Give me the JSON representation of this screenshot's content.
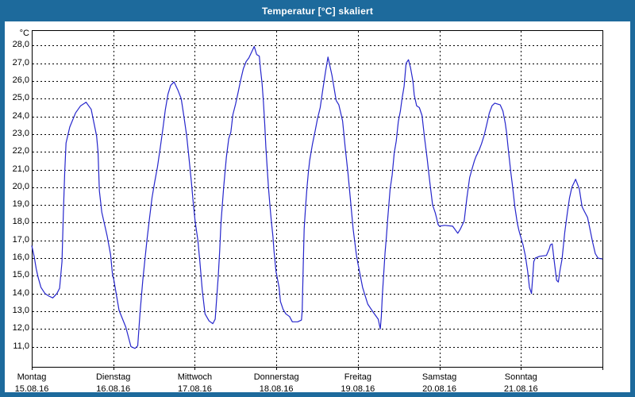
{
  "window": {
    "title": "Temperatur [°C] skaliert"
  },
  "colors": {
    "title_bar": "#1d6a9c",
    "window_border": "#1d6a9c",
    "plot_border": "#000000",
    "grid": "#000000",
    "text": "#000000",
    "background": "#ffffff",
    "line": "#2626cc"
  },
  "chart_data": {
    "type": "line",
    "title": "Temperatur [°C] skaliert",
    "ylabel": "°C",
    "unit_label": "°C",
    "grid": "dashed",
    "legend_position": "none",
    "x_axis": {
      "hours_range": [
        0,
        168
      ],
      "tick_every_hours": 24,
      "days": [
        {
          "name": "Montag",
          "date": "15.08.16"
        },
        {
          "name": "Dienstag",
          "date": "16.08.16"
        },
        {
          "name": "Mittwoch",
          "date": "17.08.16"
        },
        {
          "name": "Donnerstag",
          "date": "18.08.16"
        },
        {
          "name": "Freitag",
          "date": "19.08.16"
        },
        {
          "name": "Samstag",
          "date": "20.08.16"
        },
        {
          "name": "Sonntag",
          "date": "21.08.16"
        }
      ]
    },
    "y_axis": {
      "range": [
        9.86,
        28.87
      ],
      "ticks": [
        {
          "value": 28,
          "label": "28,0"
        },
        {
          "value": 27,
          "label": "27,0"
        },
        {
          "value": 26,
          "label": "26,0"
        },
        {
          "value": 25,
          "label": "25,0"
        },
        {
          "value": 24,
          "label": "24,0"
        },
        {
          "value": 23,
          "label": "23,0"
        },
        {
          "value": 22,
          "label": "22,0"
        },
        {
          "value": 21,
          "label": "21,0"
        },
        {
          "value": 20,
          "label": "20,0"
        },
        {
          "value": 19,
          "label": "19,0"
        },
        {
          "value": 18,
          "label": "18,0"
        },
        {
          "value": 17,
          "label": "17,0"
        },
        {
          "value": 16,
          "label": "16,0"
        },
        {
          "value": 15,
          "label": "15,0"
        },
        {
          "value": 14,
          "label": "14,0"
        },
        {
          "value": 13,
          "label": "13,0"
        },
        {
          "value": 12,
          "label": "12,0"
        },
        {
          "value": 11,
          "label": "11,0"
        }
      ]
    },
    "series": [
      {
        "name": "Temperatur [°C]",
        "color": "#2626cc",
        "points_hours_temp": [
          [
            0,
            16.7
          ],
          [
            0.7,
            16.1
          ],
          [
            1.3,
            15.4
          ],
          [
            1.9,
            14.9
          ],
          [
            2.7,
            14.35
          ],
          [
            3.9,
            14.0
          ],
          [
            5.1,
            13.85
          ],
          [
            6.2,
            13.75
          ],
          [
            7.4,
            14.0
          ],
          [
            8.2,
            14.3
          ],
          [
            8.9,
            15.8
          ],
          [
            9.3,
            18.5
          ],
          [
            9.7,
            20.8
          ],
          [
            10.1,
            22.5
          ],
          [
            11.2,
            23.4
          ],
          [
            12.9,
            24.2
          ],
          [
            14.4,
            24.6
          ],
          [
            16.0,
            24.8
          ],
          [
            17.5,
            24.4
          ],
          [
            19.1,
            22.9
          ],
          [
            19.5,
            22.0
          ],
          [
            19.9,
            19.8
          ],
          [
            20.6,
            18.6
          ],
          [
            22.2,
            17.25
          ],
          [
            23.2,
            16.2
          ],
          [
            23.8,
            15.0
          ],
          [
            24.1,
            14.85
          ],
          [
            25.7,
            13.05
          ],
          [
            27.7,
            12.1
          ],
          [
            29.2,
            11.0
          ],
          [
            30.4,
            10.9
          ],
          [
            31.2,
            11.05
          ],
          [
            31.9,
            12.95
          ],
          [
            32.7,
            14.75
          ],
          [
            33.9,
            17.0
          ],
          [
            34.6,
            18.15
          ],
          [
            35.4,
            19.4
          ],
          [
            36.2,
            20.3
          ],
          [
            37.0,
            21.15
          ],
          [
            37.8,
            22.2
          ],
          [
            38.6,
            23.3
          ],
          [
            39.3,
            24.35
          ],
          [
            40.1,
            25.25
          ],
          [
            40.9,
            25.75
          ],
          [
            41.9,
            25.95
          ],
          [
            43.0,
            25.5
          ],
          [
            44.0,
            25.0
          ],
          [
            44.8,
            24.0
          ],
          [
            45.6,
            22.9
          ],
          [
            46.3,
            21.6
          ],
          [
            47.0,
            20.3
          ],
          [
            47.5,
            19.2
          ],
          [
            48.1,
            18.05
          ],
          [
            48.9,
            17.0
          ],
          [
            49.5,
            15.8
          ],
          [
            50.2,
            14.2
          ],
          [
            51.0,
            12.85
          ],
          [
            52.2,
            12.45
          ],
          [
            53.3,
            12.3
          ],
          [
            54.0,
            12.55
          ],
          [
            54.9,
            15.0
          ],
          [
            55.3,
            16.35
          ],
          [
            55.7,
            18.0
          ],
          [
            56.5,
            20.0
          ],
          [
            57.3,
            21.7
          ],
          [
            58.0,
            22.75
          ],
          [
            58.6,
            23.1
          ],
          [
            59.2,
            24.1
          ],
          [
            60.0,
            24.7
          ],
          [
            60.8,
            25.4
          ],
          [
            61.5,
            26.05
          ],
          [
            62.3,
            26.7
          ],
          [
            63.1,
            27.1
          ],
          [
            63.9,
            27.3
          ],
          [
            65.0,
            27.75
          ],
          [
            65.5,
            27.95
          ],
          [
            66.2,
            27.5
          ],
          [
            67.0,
            27.4
          ],
          [
            67.3,
            26.75
          ],
          [
            67.8,
            25.85
          ],
          [
            68.2,
            24.8
          ],
          [
            68.6,
            23.5
          ],
          [
            68.9,
            22.3
          ],
          [
            69.3,
            21.1
          ],
          [
            69.7,
            19.95
          ],
          [
            70.1,
            19.0
          ],
          [
            70.5,
            18.15
          ],
          [
            71.0,
            17.2
          ],
          [
            71.3,
            16.45
          ],
          [
            71.9,
            15.25
          ],
          [
            72.8,
            14.35
          ],
          [
            73.2,
            13.55
          ],
          [
            74.0,
            13.1
          ],
          [
            74.8,
            12.85
          ],
          [
            75.9,
            12.7
          ],
          [
            76.7,
            12.4
          ],
          [
            78.3,
            12.4
          ],
          [
            79.4,
            12.5
          ],
          [
            79.6,
            13.0
          ],
          [
            79.9,
            15.5
          ],
          [
            80.2,
            17.65
          ],
          [
            80.6,
            18.85
          ],
          [
            81.0,
            19.95
          ],
          [
            81.4,
            20.8
          ],
          [
            81.8,
            21.5
          ],
          [
            82.6,
            22.4
          ],
          [
            83.4,
            23.15
          ],
          [
            84.1,
            23.85
          ],
          [
            84.9,
            24.5
          ],
          [
            85.7,
            25.55
          ],
          [
            86.5,
            26.55
          ],
          [
            86.9,
            27.0
          ],
          [
            87.2,
            27.35
          ],
          [
            88.4,
            26.3
          ],
          [
            89.6,
            24.9
          ],
          [
            90.4,
            24.65
          ],
          [
            91.5,
            23.75
          ],
          [
            92.3,
            22.2
          ],
          [
            92.7,
            21.5
          ],
          [
            93.1,
            20.8
          ],
          [
            93.9,
            19.1
          ],
          [
            94.6,
            17.65
          ],
          [
            95.6,
            16.15
          ],
          [
            96.0,
            15.7
          ],
          [
            97.4,
            14.35
          ],
          [
            98.9,
            13.4
          ],
          [
            100.5,
            12.95
          ],
          [
            102.0,
            12.55
          ],
          [
            102.6,
            12.0
          ],
          [
            102.9,
            12.7
          ],
          [
            103.2,
            13.9
          ],
          [
            104.0,
            16.3
          ],
          [
            104.4,
            17.2
          ],
          [
            104.8,
            18.25
          ],
          [
            105.5,
            19.9
          ],
          [
            106.1,
            20.7
          ],
          [
            106.7,
            21.95
          ],
          [
            107.3,
            22.6
          ],
          [
            107.9,
            23.7
          ],
          [
            108.5,
            24.3
          ],
          [
            109.0,
            25.0
          ],
          [
            109.6,
            25.7
          ],
          [
            110.2,
            27.0
          ],
          [
            110.9,
            27.2
          ],
          [
            111.5,
            26.75
          ],
          [
            112.2,
            26.0
          ],
          [
            112.6,
            25.2
          ],
          [
            113.3,
            24.6
          ],
          [
            114.1,
            24.5
          ],
          [
            114.9,
            24.05
          ],
          [
            115.6,
            22.85
          ],
          [
            116.4,
            21.6
          ],
          [
            117.2,
            20.25
          ],
          [
            118.0,
            19.0
          ],
          [
            118.8,
            18.55
          ],
          [
            119.2,
            18.25
          ],
          [
            119.6,
            17.9
          ],
          [
            120.0,
            17.8
          ],
          [
            121.5,
            17.85
          ],
          [
            123.9,
            17.8
          ],
          [
            125.4,
            17.4
          ],
          [
            126.2,
            17.65
          ],
          [
            127.3,
            18.1
          ],
          [
            128.1,
            19.4
          ],
          [
            128.9,
            20.55
          ],
          [
            129.7,
            21.1
          ],
          [
            130.3,
            21.5
          ],
          [
            130.8,
            21.75
          ],
          [
            131.6,
            22.05
          ],
          [
            132.4,
            22.45
          ],
          [
            133.2,
            22.95
          ],
          [
            134.0,
            23.6
          ],
          [
            134.7,
            24.2
          ],
          [
            135.5,
            24.6
          ],
          [
            136.3,
            24.75
          ],
          [
            137.9,
            24.65
          ],
          [
            138.7,
            24.3
          ],
          [
            139.4,
            23.6
          ],
          [
            139.8,
            23.05
          ],
          [
            140.2,
            22.3
          ],
          [
            140.6,
            21.6
          ],
          [
            141.0,
            20.9
          ],
          [
            141.4,
            20.25
          ],
          [
            141.8,
            19.6
          ],
          [
            142.2,
            18.9
          ],
          [
            142.6,
            18.4
          ],
          [
            142.9,
            18.0
          ],
          [
            143.3,
            17.65
          ],
          [
            143.7,
            17.35
          ],
          [
            144.1,
            17.1
          ],
          [
            144.6,
            16.75
          ],
          [
            145.3,
            16.15
          ],
          [
            146.0,
            15.25
          ],
          [
            146.5,
            14.35
          ],
          [
            147.1,
            14.0
          ],
          [
            147.8,
            15.8
          ],
          [
            148.2,
            16.0
          ],
          [
            149.5,
            16.1
          ],
          [
            151.5,
            16.15
          ],
          [
            152.3,
            16.5
          ],
          [
            152.7,
            16.75
          ],
          [
            153.2,
            16.8
          ],
          [
            153.8,
            15.85
          ],
          [
            154.5,
            14.75
          ],
          [
            155.0,
            14.65
          ],
          [
            155.5,
            15.3
          ],
          [
            156.1,
            15.95
          ],
          [
            156.5,
            16.7
          ],
          [
            156.9,
            17.45
          ],
          [
            157.7,
            18.6
          ],
          [
            158.3,
            19.4
          ],
          [
            159.0,
            20.0
          ],
          [
            160.1,
            20.45
          ],
          [
            161.2,
            19.9
          ],
          [
            162.0,
            18.9
          ],
          [
            162.8,
            18.6
          ],
          [
            163.6,
            18.3
          ],
          [
            164.3,
            17.65
          ],
          [
            165.1,
            16.9
          ],
          [
            165.9,
            16.25
          ],
          [
            166.7,
            16.0
          ],
          [
            168.0,
            15.95
          ]
        ]
      }
    ]
  }
}
